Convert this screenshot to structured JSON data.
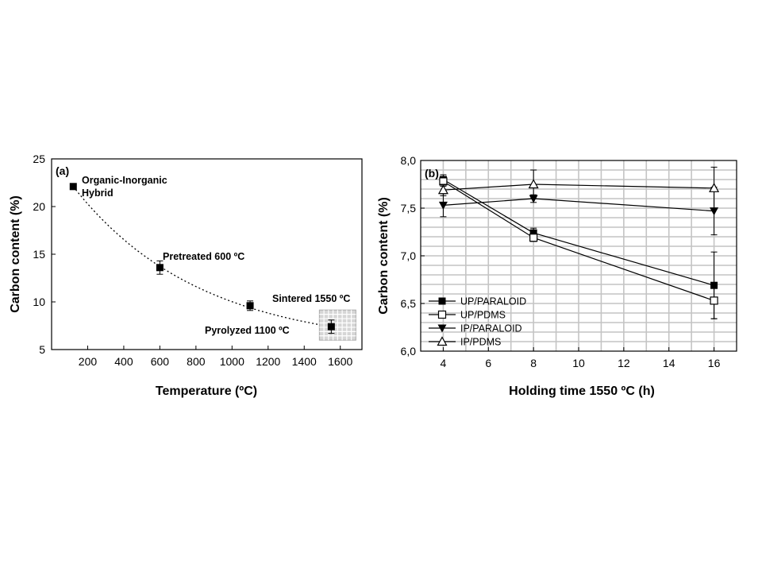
{
  "chart_data": [
    {
      "type": "scatter",
      "panel_label": "(a)",
      "xlabel": "Temperature (ºC)",
      "ylabel": "Carbon content (%)",
      "xlim": [
        0,
        1720
      ],
      "ylim": [
        5,
        25
      ],
      "xticks": [
        "200",
        "400",
        "600",
        "800",
        "1000",
        "1200",
        "1400",
        "1600"
      ],
      "yticks": [
        "5",
        "10",
        "15",
        "20",
        "25"
      ],
      "points": [
        {
          "x": 120,
          "y": 22.1,
          "err": 0
        },
        {
          "x": 600,
          "y": 13.6,
          "err": 0.7
        },
        {
          "x": 1100,
          "y": 9.6,
          "err": 0.5
        },
        {
          "x": 1550,
          "y": 7.4,
          "err": 0.7
        }
      ],
      "trend": "dotted exponential decay",
      "annotations": [
        "Organic-Inorganic",
        "Hybrid",
        "Pretreated 600 ºC",
        "Pyrolyzed 1100 ºC",
        "Sintered 1550 ºC"
      ],
      "grid": false
    },
    {
      "type": "line",
      "panel_label": "(b)",
      "xlabel": "Holding time 1550 ºC (h)",
      "ylabel": "Carbon content (%)",
      "xlim": [
        3,
        17
      ],
      "ylim": [
        6.0,
        8.0
      ],
      "xticks": [
        "4",
        "6",
        "8",
        "10",
        "12",
        "14",
        "16"
      ],
      "yticks": [
        "6,0",
        "6,5",
        "7,0",
        "7,5",
        "8,0"
      ],
      "x": [
        4,
        8,
        16
      ],
      "grid": true,
      "legend_position": "bottom-left",
      "series": [
        {
          "name": "UP/PARALOID",
          "marker": "filled-square",
          "values": [
            7.8,
            7.24,
            6.69
          ],
          "errors": [
            0.05,
            0.05,
            0.35
          ]
        },
        {
          "name": "UP/PDMS",
          "marker": "open-square",
          "values": [
            7.78,
            7.19,
            6.53
          ],
          "errors": [
            0.05,
            0.04,
            0.19
          ]
        },
        {
          "name": "IP/PARALOID",
          "marker": "filled-triangle-down",
          "values": [
            7.53,
            7.6,
            7.47
          ],
          "errors": [
            0.12,
            0.04,
            0.25
          ]
        },
        {
          "name": "IP/PDMS",
          "marker": "open-triangle-up",
          "values": [
            7.69,
            7.75,
            7.71
          ],
          "errors": [
            0.06,
            0.15,
            0.22
          ]
        }
      ]
    }
  ]
}
